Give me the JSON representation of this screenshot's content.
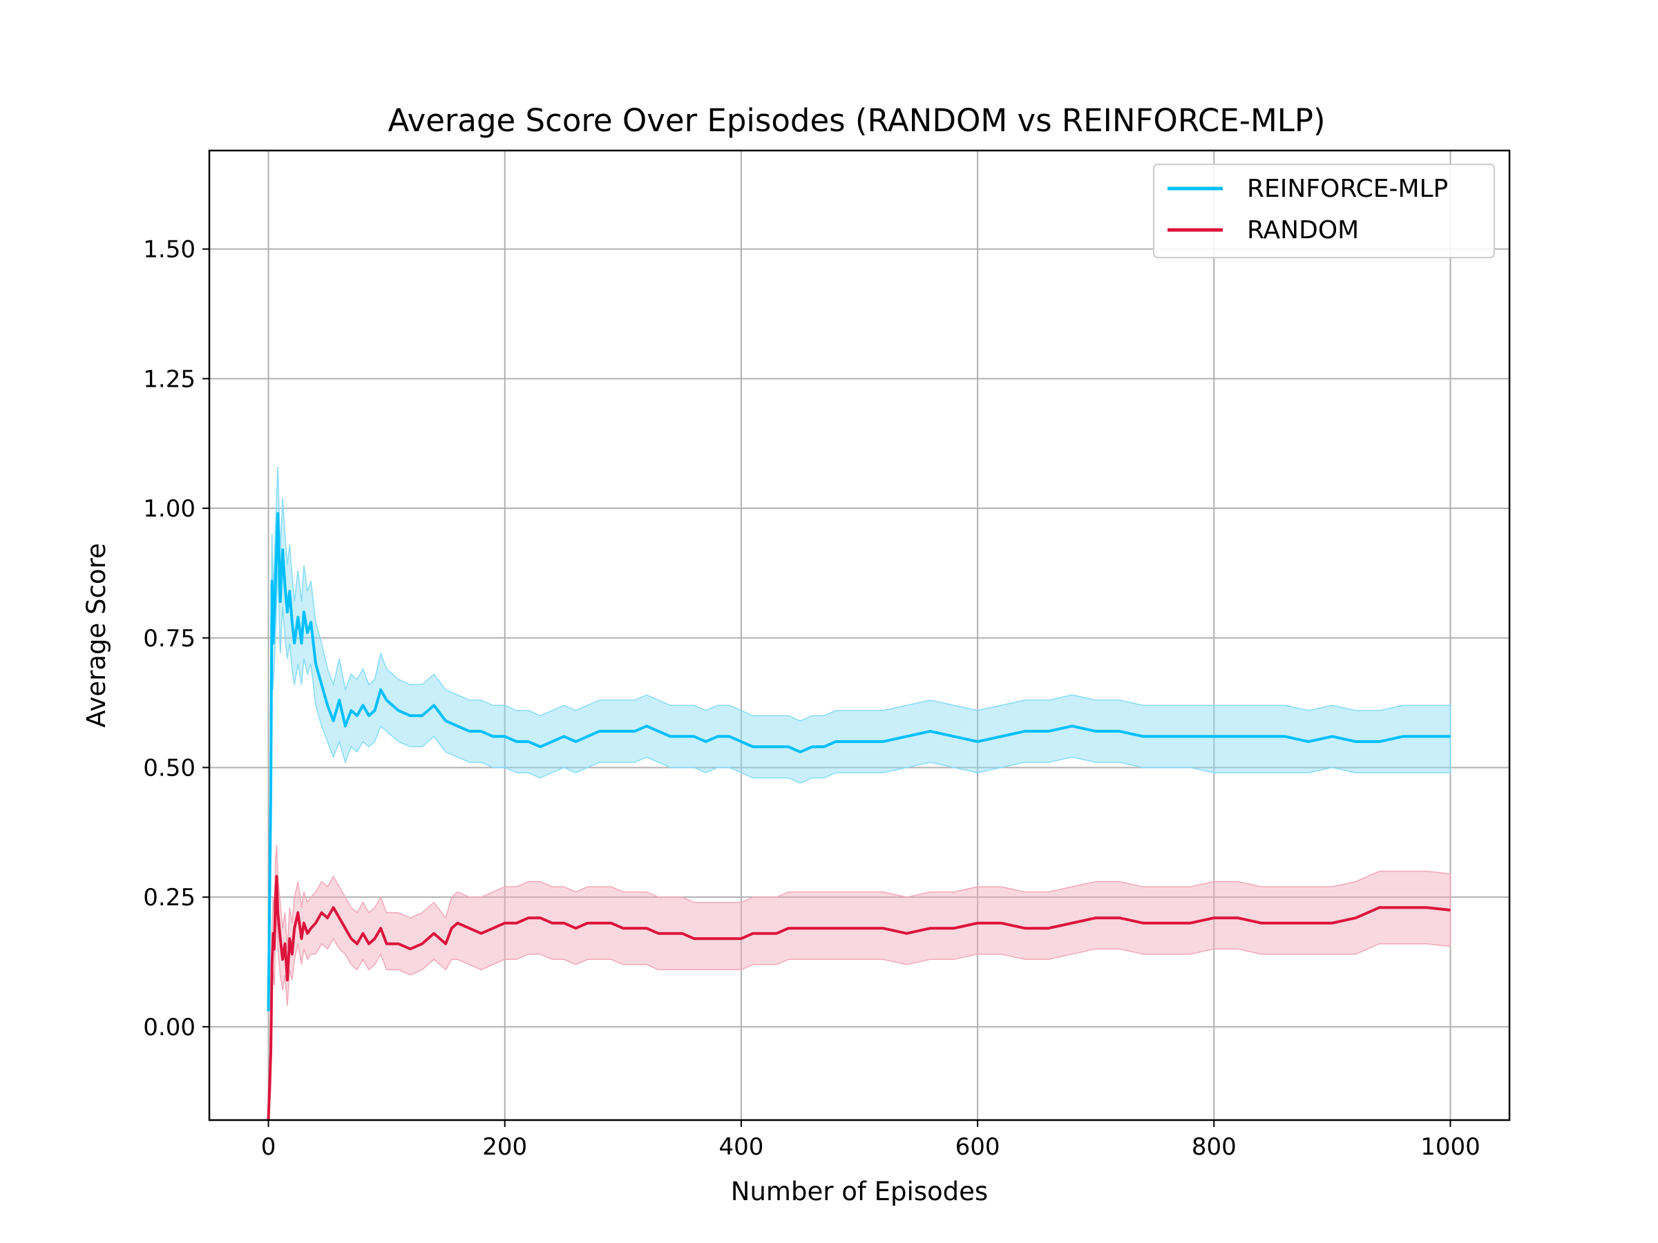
{
  "chart_data": {
    "type": "line",
    "title": "Average Score Over Episodes (RANDOM vs REINFORCE-MLP)",
    "xlabel": "Number of Episodes",
    "ylabel": "Average Score",
    "xlim": [
      -50,
      1050
    ],
    "ylim": [
      -0.18,
      1.69
    ],
    "xticks": [
      0,
      200,
      400,
      600,
      800,
      1000
    ],
    "xtick_labels": [
      "0",
      "200",
      "400",
      "600",
      "800",
      "1000"
    ],
    "yticks": [
      0.0,
      0.25,
      0.5,
      0.75,
      1.0,
      1.25,
      1.5
    ],
    "ytick_labels": [
      "0.00",
      "0.25",
      "0.50",
      "0.75",
      "1.00",
      "1.25",
      "1.50"
    ],
    "grid": true,
    "legend_position": "top-right",
    "series": [
      {
        "name": "REINFORCE-MLP",
        "color": "#00bfff",
        "band_color": "#87dcf7",
        "x": [
          0,
          2,
          3,
          4,
          6,
          8,
          10,
          12,
          14,
          16,
          18,
          20,
          22,
          25,
          28,
          30,
          33,
          36,
          40,
          45,
          50,
          55,
          60,
          65,
          70,
          75,
          80,
          85,
          90,
          95,
          100,
          110,
          120,
          130,
          140,
          150,
          160,
          170,
          180,
          190,
          200,
          210,
          220,
          230,
          240,
          250,
          260,
          270,
          280,
          290,
          300,
          310,
          320,
          330,
          340,
          350,
          360,
          370,
          380,
          390,
          400,
          410,
          420,
          430,
          440,
          450,
          460,
          470,
          480,
          490,
          500,
          520,
          540,
          560,
          580,
          600,
          620,
          640,
          660,
          680,
          700,
          720,
          740,
          760,
          780,
          800,
          820,
          840,
          860,
          880,
          900,
          920,
          940,
          960,
          980,
          1000
        ],
        "y": [
          0.03,
          0.45,
          0.86,
          0.74,
          0.86,
          0.99,
          0.82,
          0.92,
          0.85,
          0.8,
          0.84,
          0.78,
          0.74,
          0.79,
          0.74,
          0.8,
          0.76,
          0.78,
          0.7,
          0.66,
          0.62,
          0.59,
          0.63,
          0.58,
          0.61,
          0.6,
          0.62,
          0.6,
          0.61,
          0.65,
          0.63,
          0.61,
          0.6,
          0.6,
          0.62,
          0.59,
          0.58,
          0.57,
          0.57,
          0.56,
          0.56,
          0.55,
          0.55,
          0.54,
          0.55,
          0.56,
          0.55,
          0.56,
          0.57,
          0.57,
          0.57,
          0.57,
          0.58,
          0.57,
          0.56,
          0.56,
          0.56,
          0.55,
          0.56,
          0.56,
          0.55,
          0.54,
          0.54,
          0.54,
          0.54,
          0.53,
          0.54,
          0.54,
          0.55,
          0.55,
          0.55,
          0.55,
          0.56,
          0.57,
          0.56,
          0.55,
          0.56,
          0.57,
          0.57,
          0.58,
          0.57,
          0.57,
          0.56,
          0.56,
          0.56,
          0.56,
          0.56,
          0.56,
          0.56,
          0.55,
          0.56,
          0.55,
          0.55,
          0.56,
          0.56,
          0.56
        ],
        "lower": [
          0.03,
          0.36,
          0.77,
          0.65,
          0.75,
          0.88,
          0.72,
          0.81,
          0.75,
          0.71,
          0.74,
          0.69,
          0.66,
          0.7,
          0.66,
          0.71,
          0.68,
          0.7,
          0.62,
          0.58,
          0.55,
          0.52,
          0.55,
          0.51,
          0.54,
          0.53,
          0.55,
          0.54,
          0.55,
          0.58,
          0.57,
          0.55,
          0.54,
          0.54,
          0.56,
          0.53,
          0.52,
          0.51,
          0.51,
          0.5,
          0.5,
          0.49,
          0.49,
          0.48,
          0.49,
          0.5,
          0.49,
          0.5,
          0.51,
          0.51,
          0.51,
          0.51,
          0.52,
          0.51,
          0.5,
          0.5,
          0.5,
          0.49,
          0.5,
          0.5,
          0.49,
          0.48,
          0.48,
          0.48,
          0.48,
          0.47,
          0.48,
          0.48,
          0.49,
          0.49,
          0.49,
          0.49,
          0.5,
          0.51,
          0.5,
          0.49,
          0.5,
          0.51,
          0.51,
          0.52,
          0.51,
          0.51,
          0.5,
          0.5,
          0.5,
          0.49,
          0.49,
          0.49,
          0.49,
          0.49,
          0.5,
          0.49,
          0.49,
          0.49,
          0.49,
          0.49
        ],
        "upper": [
          0.03,
          0.54,
          0.95,
          0.83,
          0.97,
          1.08,
          0.92,
          1.02,
          0.95,
          0.89,
          0.93,
          0.87,
          0.82,
          0.88,
          0.82,
          0.89,
          0.84,
          0.86,
          0.78,
          0.74,
          0.69,
          0.66,
          0.71,
          0.65,
          0.68,
          0.67,
          0.69,
          0.66,
          0.67,
          0.72,
          0.69,
          0.67,
          0.66,
          0.66,
          0.68,
          0.65,
          0.64,
          0.63,
          0.63,
          0.62,
          0.62,
          0.61,
          0.61,
          0.6,
          0.61,
          0.62,
          0.61,
          0.62,
          0.63,
          0.63,
          0.63,
          0.63,
          0.64,
          0.63,
          0.62,
          0.62,
          0.62,
          0.61,
          0.62,
          0.62,
          0.61,
          0.6,
          0.6,
          0.6,
          0.6,
          0.59,
          0.6,
          0.6,
          0.61,
          0.61,
          0.61,
          0.61,
          0.62,
          0.63,
          0.62,
          0.61,
          0.62,
          0.63,
          0.63,
          0.64,
          0.63,
          0.63,
          0.62,
          0.62,
          0.62,
          0.62,
          0.62,
          0.62,
          0.62,
          0.61,
          0.62,
          0.61,
          0.61,
          0.62,
          0.62,
          0.62
        ]
      },
      {
        "name": "RANDOM",
        "color": "#dc143c",
        "band_color": "#f2a9b8",
        "x": [
          0,
          2,
          3,
          4,
          5,
          6,
          7,
          8,
          10,
          12,
          14,
          16,
          18,
          20,
          22,
          25,
          28,
          30,
          33,
          36,
          40,
          45,
          50,
          55,
          60,
          65,
          70,
          75,
          80,
          85,
          90,
          95,
          100,
          110,
          120,
          130,
          140,
          150,
          155,
          160,
          170,
          180,
          190,
          200,
          210,
          220,
          230,
          240,
          250,
          260,
          270,
          280,
          290,
          300,
          310,
          320,
          330,
          340,
          350,
          360,
          370,
          380,
          390,
          400,
          410,
          420,
          430,
          440,
          450,
          460,
          470,
          480,
          490,
          500,
          520,
          540,
          560,
          580,
          600,
          620,
          640,
          660,
          680,
          700,
          720,
          740,
          760,
          780,
          800,
          820,
          840,
          860,
          880,
          900,
          920,
          940,
          960,
          980,
          1000
        ],
        "y": [
          -0.18,
          -0.05,
          0.12,
          0.18,
          0.15,
          0.25,
          0.29,
          0.22,
          0.17,
          0.13,
          0.16,
          0.09,
          0.17,
          0.14,
          0.19,
          0.22,
          0.17,
          0.2,
          0.18,
          0.19,
          0.2,
          0.22,
          0.21,
          0.23,
          0.21,
          0.19,
          0.17,
          0.16,
          0.18,
          0.16,
          0.17,
          0.19,
          0.16,
          0.16,
          0.15,
          0.16,
          0.18,
          0.16,
          0.19,
          0.2,
          0.19,
          0.18,
          0.19,
          0.2,
          0.2,
          0.21,
          0.21,
          0.2,
          0.2,
          0.19,
          0.2,
          0.2,
          0.2,
          0.19,
          0.19,
          0.19,
          0.18,
          0.18,
          0.18,
          0.17,
          0.17,
          0.17,
          0.17,
          0.17,
          0.18,
          0.18,
          0.18,
          0.19,
          0.19,
          0.19,
          0.19,
          0.19,
          0.19,
          0.19,
          0.19,
          0.18,
          0.19,
          0.19,
          0.2,
          0.2,
          0.19,
          0.19,
          0.2,
          0.21,
          0.21,
          0.2,
          0.2,
          0.2,
          0.21,
          0.21,
          0.2,
          0.2,
          0.2,
          0.2,
          0.21,
          0.23,
          0.23,
          0.23,
          0.225
        ],
        "lower": [
          -0.18,
          -0.12,
          0.05,
          0.11,
          0.08,
          0.18,
          0.22,
          0.15,
          0.1,
          0.07,
          0.1,
          0.04,
          0.11,
          0.09,
          0.13,
          0.16,
          0.12,
          0.15,
          0.13,
          0.14,
          0.14,
          0.16,
          0.15,
          0.17,
          0.15,
          0.14,
          0.12,
          0.11,
          0.13,
          0.11,
          0.12,
          0.14,
          0.11,
          0.11,
          0.1,
          0.11,
          0.13,
          0.11,
          0.13,
          0.13,
          0.12,
          0.11,
          0.12,
          0.13,
          0.13,
          0.14,
          0.14,
          0.13,
          0.13,
          0.12,
          0.13,
          0.13,
          0.13,
          0.12,
          0.12,
          0.12,
          0.11,
          0.11,
          0.11,
          0.11,
          0.11,
          0.11,
          0.11,
          0.11,
          0.12,
          0.12,
          0.12,
          0.13,
          0.13,
          0.13,
          0.13,
          0.13,
          0.13,
          0.13,
          0.13,
          0.12,
          0.13,
          0.13,
          0.14,
          0.14,
          0.13,
          0.13,
          0.14,
          0.15,
          0.15,
          0.14,
          0.14,
          0.14,
          0.15,
          0.15,
          0.14,
          0.14,
          0.14,
          0.14,
          0.14,
          0.16,
          0.16,
          0.16,
          0.155
        ],
        "upper": [
          -0.18,
          0.02,
          0.19,
          0.25,
          0.22,
          0.32,
          0.35,
          0.29,
          0.24,
          0.19,
          0.22,
          0.15,
          0.23,
          0.2,
          0.25,
          0.28,
          0.23,
          0.26,
          0.24,
          0.25,
          0.26,
          0.28,
          0.27,
          0.29,
          0.27,
          0.25,
          0.23,
          0.22,
          0.24,
          0.22,
          0.23,
          0.25,
          0.22,
          0.22,
          0.21,
          0.22,
          0.24,
          0.21,
          0.25,
          0.26,
          0.25,
          0.25,
          0.26,
          0.27,
          0.27,
          0.28,
          0.28,
          0.27,
          0.27,
          0.26,
          0.27,
          0.27,
          0.27,
          0.26,
          0.26,
          0.26,
          0.25,
          0.25,
          0.25,
          0.24,
          0.24,
          0.24,
          0.24,
          0.24,
          0.25,
          0.25,
          0.25,
          0.26,
          0.26,
          0.26,
          0.26,
          0.26,
          0.26,
          0.26,
          0.26,
          0.25,
          0.26,
          0.26,
          0.27,
          0.27,
          0.26,
          0.26,
          0.27,
          0.28,
          0.28,
          0.27,
          0.27,
          0.27,
          0.28,
          0.28,
          0.27,
          0.27,
          0.27,
          0.27,
          0.28,
          0.3,
          0.3,
          0.3,
          0.295
        ]
      }
    ]
  }
}
